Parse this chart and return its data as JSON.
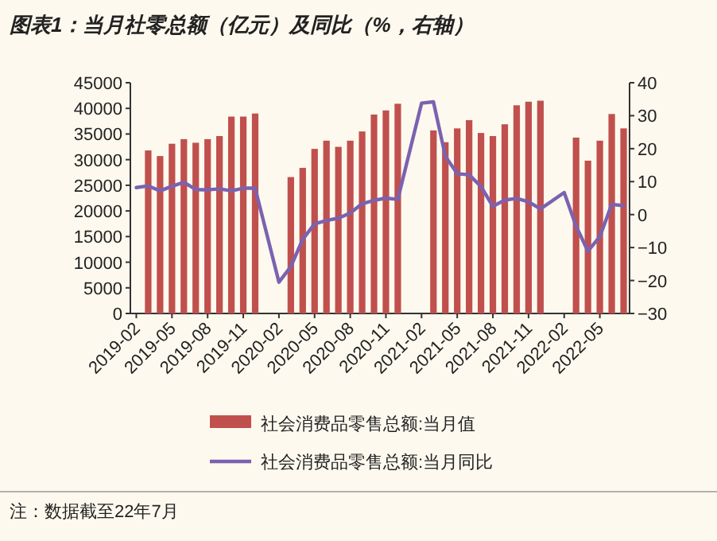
{
  "chart_data": {
    "type": "bar",
    "title": "图表1：当月社零总额（亿元）及同比（%，右轴）",
    "categories": [
      "2019-02",
      null,
      null,
      "2019-05",
      null,
      null,
      "2019-08",
      null,
      null,
      "2019-11",
      null,
      null,
      "2020-02",
      null,
      null,
      "2020-05",
      null,
      null,
      "2020-08",
      null,
      null,
      "2020-11",
      null,
      null,
      "2021-02",
      null,
      null,
      "2021-05",
      null,
      null,
      "2021-08",
      null,
      null,
      "2021-11",
      null,
      null,
      "2022-02",
      null,
      null,
      "2022-05",
      null,
      null
    ],
    "series": [
      {
        "name": "社会消费品零售总额:当月值",
        "color": "#c0504d",
        "values": [
          null,
          31800,
          30700,
          33100,
          34000,
          33300,
          34000,
          34600,
          38400,
          38400,
          39000,
          null,
          null,
          26600,
          28400,
          32100,
          33700,
          32500,
          33700,
          35500,
          38800,
          39600,
          40900,
          null,
          null,
          35700,
          33400,
          36100,
          37700,
          35200,
          34600,
          36900,
          40600,
          41300,
          41500,
          null,
          null,
          34300,
          29800,
          33700,
          38900,
          36100
        ]
      },
      {
        "name": "社会消费品零售总额:当月同比",
        "type": "line",
        "axis": "y2",
        "color": "#7b62b0",
        "values": [
          8.2,
          8.7,
          7.2,
          8.6,
          9.8,
          7.6,
          7.5,
          7.8,
          7.2,
          8.0,
          8.0,
          null,
          -20.5,
          -15.8,
          -7.5,
          -2.8,
          -1.8,
          -1.1,
          0.5,
          3.3,
          4.3,
          5.0,
          4.6,
          null,
          33.8,
          34.2,
          17.7,
          12.4,
          12.1,
          8.5,
          2.5,
          4.4,
          4.9,
          3.9,
          1.7,
          null,
          6.7,
          -3.5,
          -11.1,
          -6.7,
          3.1,
          2.7
        ]
      }
    ],
    "ylim": [
      0,
      45000
    ],
    "yticks": [
      0,
      5000,
      10000,
      15000,
      20000,
      25000,
      30000,
      35000,
      40000,
      45000
    ],
    "y2lim": [
      -30,
      40
    ],
    "y2ticks": [
      -30,
      -20,
      -10,
      0,
      10,
      20,
      30,
      40
    ],
    "legend": "bottom",
    "grid": false,
    "annotations": [
      "注：数据截至22年7月"
    ]
  }
}
